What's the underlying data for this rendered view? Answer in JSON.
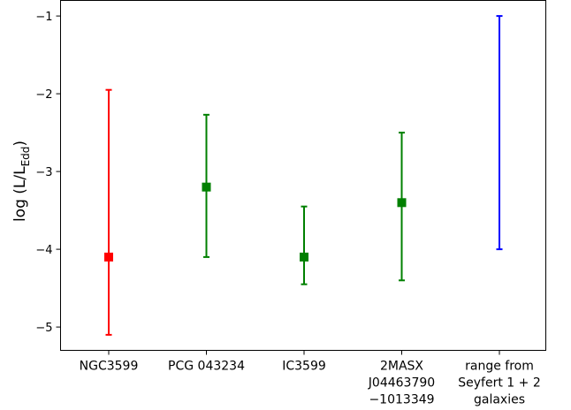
{
  "chart_data": {
    "type": "scatter",
    "ylabel_main": "log (L/L",
    "ylabel_sub": "Edd",
    "ylabel_close": ")",
    "xlabel": "",
    "ylim": [
      -5.3,
      -0.8
    ],
    "yticks": [
      -1,
      -2,
      -3,
      -4,
      -5
    ],
    "ytick_labels": [
      "−1",
      "−2",
      "−3",
      "−4",
      "−5"
    ],
    "grid": false,
    "categories": [
      {
        "lines": [
          "NGC3599"
        ]
      },
      {
        "lines": [
          "PCG 043234"
        ]
      },
      {
        "lines": [
          "IC3599"
        ]
      },
      {
        "lines": [
          "2MASX",
          "J04463790",
          "−1013349"
        ]
      },
      {
        "lines": [
          "range from",
          "Seyfert 1 + 2",
          "galaxies"
        ]
      }
    ],
    "points": [
      {
        "value": -4.1,
        "low": -5.1,
        "high": -1.95,
        "color": "#ff0000",
        "marker": true
      },
      {
        "value": -3.2,
        "low": -4.1,
        "high": -2.27,
        "color": "#008000",
        "marker": true
      },
      {
        "value": -4.1,
        "low": -4.45,
        "high": -3.45,
        "color": "#008000",
        "marker": true
      },
      {
        "value": -3.4,
        "low": -4.4,
        "high": -2.5,
        "color": "#008000",
        "marker": true
      },
      {
        "value": null,
        "low": -4.0,
        "high": -1.0,
        "color": "#0000ff",
        "marker": false
      }
    ]
  }
}
